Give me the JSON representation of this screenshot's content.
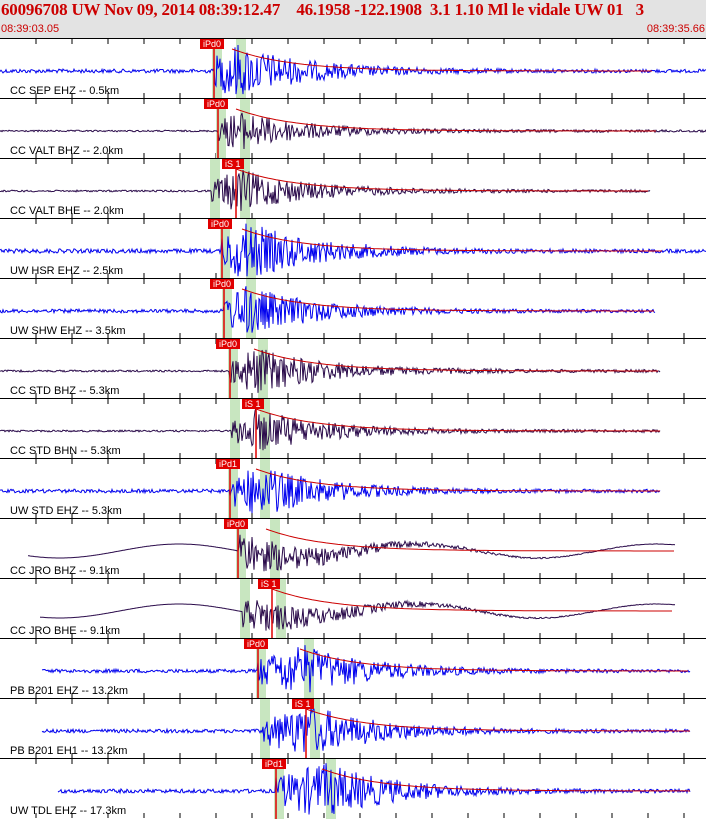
{
  "header": {
    "title": "60096708 UW Nov 09, 2014 08:39:12.47    46.1958 -122.1908  3.1 1.10 Ml le vidale UW 01   3",
    "start_time": "08:39:03.05",
    "end_time": "08:39:35.66"
  },
  "colors": {
    "header_bg": "#e3e3e3",
    "title": "#cc0000",
    "pick": "#e00000",
    "window": "#c8e6c0",
    "vert_trace": "#0000ee",
    "horiz_trace": "#2a0a4a",
    "coda": "#cc0000"
  },
  "panels": [
    {
      "label": "CC SEP EHZ -- 0.5km",
      "pick": "iPd0",
      "kind": "vert"
    },
    {
      "label": "CC VALT BHZ -- 2.0km",
      "pick": "iPd0",
      "kind": "horiz"
    },
    {
      "label": "CC VALT BHE -- 2.0km",
      "pick": "iS 1",
      "kind": "horiz"
    },
    {
      "label": "UW HSR EHZ -- 2.5km",
      "pick": "iPd0",
      "kind": "vert"
    },
    {
      "label": "UW SHW EHZ -- 3.5km",
      "pick": "iPd0",
      "kind": "vert"
    },
    {
      "label": "CC STD BHZ -- 5.3km",
      "pick": "iPd0",
      "kind": "horiz"
    },
    {
      "label": "CC STD BHN -- 5.3km",
      "pick": "iS 1",
      "kind": "horiz"
    },
    {
      "label": "UW STD EHZ -- 5.3km",
      "pick": "iPd1",
      "kind": "vert"
    },
    {
      "label": "CC JRO BHZ -- 9.1km",
      "pick": "iPd0",
      "kind": "horiz"
    },
    {
      "label": "CC JRO BHE -- 9.1km",
      "pick": "iS 1",
      "kind": "horiz"
    },
    {
      "label": "PB B201 EHZ -- 13.2km",
      "pick": "iPd0",
      "kind": "vert"
    },
    {
      "label": "PB B201 EH1 -- 13.2km",
      "pick": "iS 1",
      "kind": "vert"
    },
    {
      "label": "UW TDL EHZ -- 17.3km",
      "pick": "iPd1",
      "kind": "vert"
    }
  ]
}
